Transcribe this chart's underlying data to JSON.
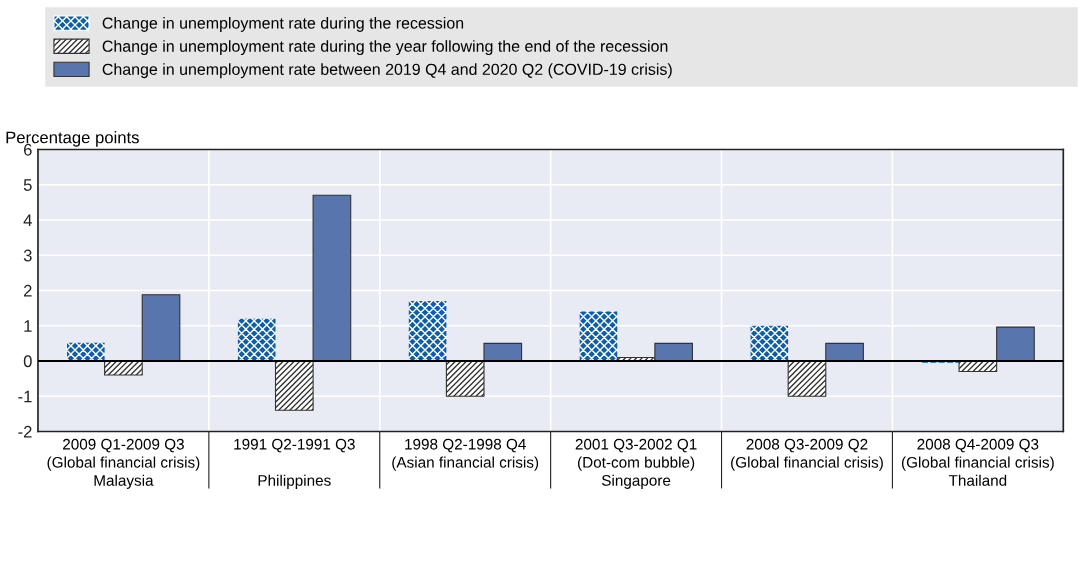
{
  "chart_data": {
    "type": "bar",
    "ylabel": "Percentage points",
    "categories": [
      "2009 Q1-2009 Q3\n(Global financial crisis)\nMalaysia",
      "1991 Q2-1991 Q3\n\nPhilippines",
      "1998 Q2-1998 Q4\n(Asian financial crisis)\n",
      "2001 Q3-2002 Q1\n(Dot-com bubble)\nSingapore",
      "2008 Q3-2009 Q2\n(Global financial crisis)\n",
      "2008 Q4-2009 Q3\n(Global financial crisis)\nThailand"
    ],
    "series": [
      {
        "name": "Change in unemployment rate during the recession",
        "color": "#0c5ea8",
        "values": [
          0.52,
          1.2,
          1.7,
          1.4,
          1.0,
          -0.05
        ]
      },
      {
        "name": "Change in unemployment rate during the year following the end of the recession",
        "color": "#333333",
        "values": [
          -0.4,
          -1.4,
          -1.0,
          0.1,
          -1.0,
          -0.3
        ]
      },
      {
        "name": "Change in unemployment rate between 2019 Q4 and 2020 Q2 (COVID-19 crisis)",
        "color": "#5875ae",
        "values": [
          1.88,
          4.7,
          0.5,
          0.5,
          0.5,
          0.96
        ]
      }
    ],
    "ylim": [
      -2,
      6
    ],
    "yticks": [
      -2,
      -1,
      0,
      1,
      2,
      3,
      4,
      5,
      6
    ],
    "grid": true,
    "legend": "top"
  }
}
